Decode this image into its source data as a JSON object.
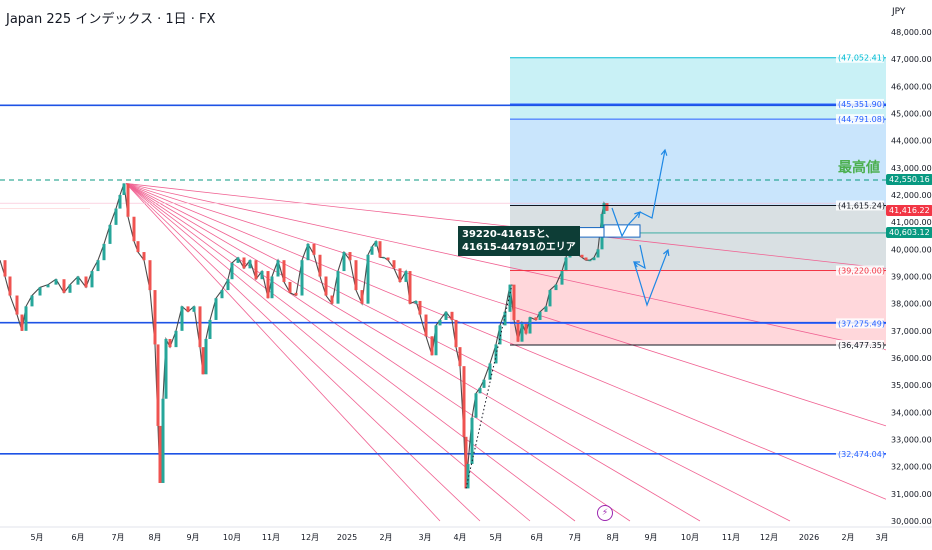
{
  "header": {
    "title": "Japan 225 インデックス · 1日 · FX",
    "currency": "JPY"
  },
  "chart_data": {
    "type": "candlestick",
    "title": "Japan 225 インデックス · 1日 · FX",
    "y_ticks": [
      "30,000.00",
      "31,000.00",
      "32,000.00",
      "33,000.00",
      "34,000.00",
      "35,000.00",
      "36,000.00",
      "37,000.00",
      "38,000.00",
      "39,000.00",
      "40,000.00",
      "41,000.00",
      "42,000.00",
      "43,000.00",
      "44,000.00",
      "45,000.00",
      "46,000.00",
      "47,000.00",
      "48,000.00"
    ],
    "ylim": [
      30000,
      48600
    ],
    "x_ticks": [
      "5月",
      "6月",
      "7月",
      "8月",
      "9月",
      "10月",
      "11月",
      "12月",
      "2025",
      "2月",
      "3月",
      "4月",
      "5月",
      "6月",
      "7月",
      "8月",
      "9月",
      "10月",
      "11月",
      "12月",
      "2026",
      "2月",
      "3月"
    ],
    "price_path": [
      [
        0,
        39600
      ],
      [
        5,
        39000
      ],
      [
        10,
        38300
      ],
      [
        17,
        37600
      ],
      [
        22,
        37000
      ],
      [
        26,
        37900
      ],
      [
        32,
        38300
      ],
      [
        40,
        38600
      ],
      [
        48,
        38700
      ],
      [
        56,
        38900
      ],
      [
        64,
        38400
      ],
      [
        70,
        38700
      ],
      [
        78,
        39000
      ],
      [
        86,
        38600
      ],
      [
        92,
        39200
      ],
      [
        98,
        39600
      ],
      [
        104,
        40200
      ],
      [
        110,
        40900
      ],
      [
        116,
        41500
      ],
      [
        120,
        42000
      ],
      [
        124,
        42426
      ],
      [
        128,
        41200
      ],
      [
        134,
        40300
      ],
      [
        138,
        39900
      ],
      [
        144,
        39600
      ],
      [
        150,
        38500
      ],
      [
        155,
        36500
      ],
      [
        158,
        33500
      ],
      [
        160,
        31400
      ],
      [
        163,
        34500
      ],
      [
        166,
        36700
      ],
      [
        170,
        36400
      ],
      [
        176,
        37000
      ],
      [
        182,
        37900
      ],
      [
        188,
        37700
      ],
      [
        194,
        37900
      ],
      [
        200,
        36400
      ],
      [
        203,
        35400
      ],
      [
        206,
        36700
      ],
      [
        210,
        37400
      ],
      [
        216,
        38200
      ],
      [
        222,
        38500
      ],
      [
        228,
        38900
      ],
      [
        232,
        39500
      ],
      [
        238,
        39700
      ],
      [
        244,
        39300
      ],
      [
        250,
        39600
      ],
      [
        256,
        38900
      ],
      [
        262,
        39200
      ],
      [
        268,
        38200
      ],
      [
        272,
        39000
      ],
      [
        278,
        39600
      ],
      [
        284,
        38800
      ],
      [
        290,
        38400
      ],
      [
        296,
        38300
      ],
      [
        302,
        39600
      ],
      [
        308,
        40200
      ],
      [
        314,
        39800
      ],
      [
        320,
        39000
      ],
      [
        326,
        38300
      ],
      [
        332,
        38000
      ],
      [
        338,
        39200
      ],
      [
        344,
        39900
      ],
      [
        350,
        39600
      ],
      [
        356,
        38500
      ],
      [
        362,
        38000
      ],
      [
        368,
        39800
      ],
      [
        372,
        40100
      ],
      [
        376,
        40300
      ],
      [
        380,
        39700
      ],
      [
        384,
        39700
      ],
      [
        388,
        39600
      ],
      [
        394,
        39300
      ],
      [
        400,
        38800
      ],
      [
        406,
        39200
      ],
      [
        410,
        38000
      ],
      [
        416,
        38100
      ],
      [
        420,
        37600
      ],
      [
        426,
        36800
      ],
      [
        432,
        36100
      ],
      [
        436,
        37200
      ],
      [
        440,
        37400
      ],
      [
        446,
        37700
      ],
      [
        452,
        37400
      ],
      [
        456,
        36400
      ],
      [
        460,
        35700
      ],
      [
        464,
        33100
      ],
      [
        466,
        31200
      ],
      [
        468,
        32100
      ],
      [
        472,
        33800
      ],
      [
        476,
        34700
      ],
      [
        480,
        34900
      ],
      [
        484,
        35200
      ],
      [
        490,
        35800
      ],
      [
        496,
        36500
      ],
      [
        500,
        37200
      ],
      [
        505,
        37700
      ],
      [
        510,
        38700
      ],
      [
        514,
        37400
      ],
      [
        518,
        36600
      ],
      [
        522,
        37300
      ],
      [
        526,
        36900
      ],
      [
        530,
        37500
      ],
      [
        536,
        37400
      ],
      [
        540,
        37700
      ],
      [
        546,
        37900
      ],
      [
        550,
        38500
      ],
      [
        556,
        38700
      ],
      [
        562,
        39200
      ],
      [
        566,
        39700
      ],
      [
        570,
        40300
      ],
      [
        574,
        40000
      ],
      [
        578,
        39800
      ],
      [
        582,
        39700
      ],
      [
        586,
        39600
      ],
      [
        590,
        39600
      ],
      [
        594,
        39700
      ],
      [
        598,
        40000
      ],
      [
        602,
        41300
      ],
      [
        604,
        41700
      ],
      [
        607,
        41416
      ]
    ],
    "horizontal_lines": [
      {
        "price": 45300,
        "color": "#1e53e5"
      },
      {
        "price": 37300,
        "color": "#1e53e5"
      },
      {
        "price": 32474,
        "color": "#1e53e5"
      },
      {
        "price": 42550,
        "color": "#089981",
        "dashed": true
      }
    ],
    "fib_levels": [
      {
        "price": 47052.41,
        "label": "(47,052.41)",
        "color": "#00bcd4"
      },
      {
        "price": 45351.9,
        "label": "(45,351.90)",
        "color": "#2962ff"
      },
      {
        "price": 44791.08,
        "label": "(44,791.08)",
        "color": "#2962ff"
      },
      {
        "price": 41615.24,
        "label": "(41,615.24)",
        "color": "#131722"
      },
      {
        "price": 39220.0,
        "label": "(39,220.00)",
        "color": "#f23645"
      },
      {
        "price": 37275.49,
        "label": "(37,275.49)",
        "color": "#2962ff"
      },
      {
        "price": 36477.35,
        "label": "(36,477.35)",
        "color": "#131722"
      },
      {
        "price": 32474.04,
        "label": "(32,474.04)",
        "color": "#2962ff"
      }
    ],
    "price_badges": [
      {
        "price": 42550.16,
        "label": "42,550.16",
        "color": "#089981"
      },
      {
        "price": 41416.22,
        "label": "41,416.22",
        "color": "#f23645"
      },
      {
        "price": 40603.12,
        "label": "40,603.12",
        "color": "#089981"
      }
    ],
    "annotations": {
      "note_line1": "39220-41615と、",
      "note_line2": "41615-44791のエリア",
      "ath_label": "最高値"
    }
  }
}
